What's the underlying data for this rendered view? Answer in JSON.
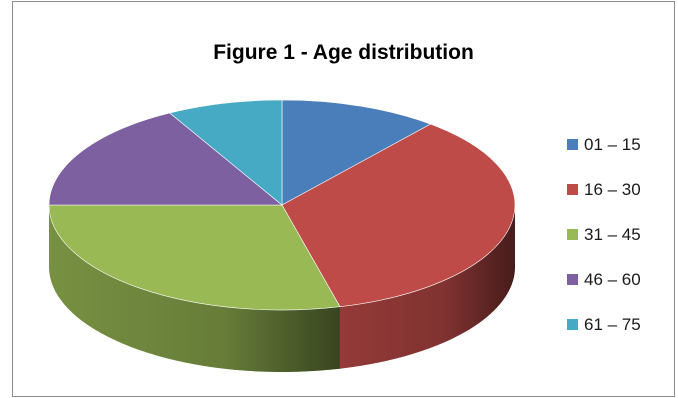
{
  "chart_data": {
    "type": "pie",
    "title": "Figure 1 - Age distribution",
    "style": "3d",
    "categories": [
      "01 – 15",
      "16 – 30",
      "31 – 45",
      "46 – 60",
      "61 – 75"
    ],
    "values": [
      11,
      35,
      29,
      17,
      8
    ],
    "colors": [
      "#4a7ebb",
      "#be4b48",
      "#98b954",
      "#7d60a0",
      "#46aac5"
    ],
    "legend_position": "right"
  }
}
